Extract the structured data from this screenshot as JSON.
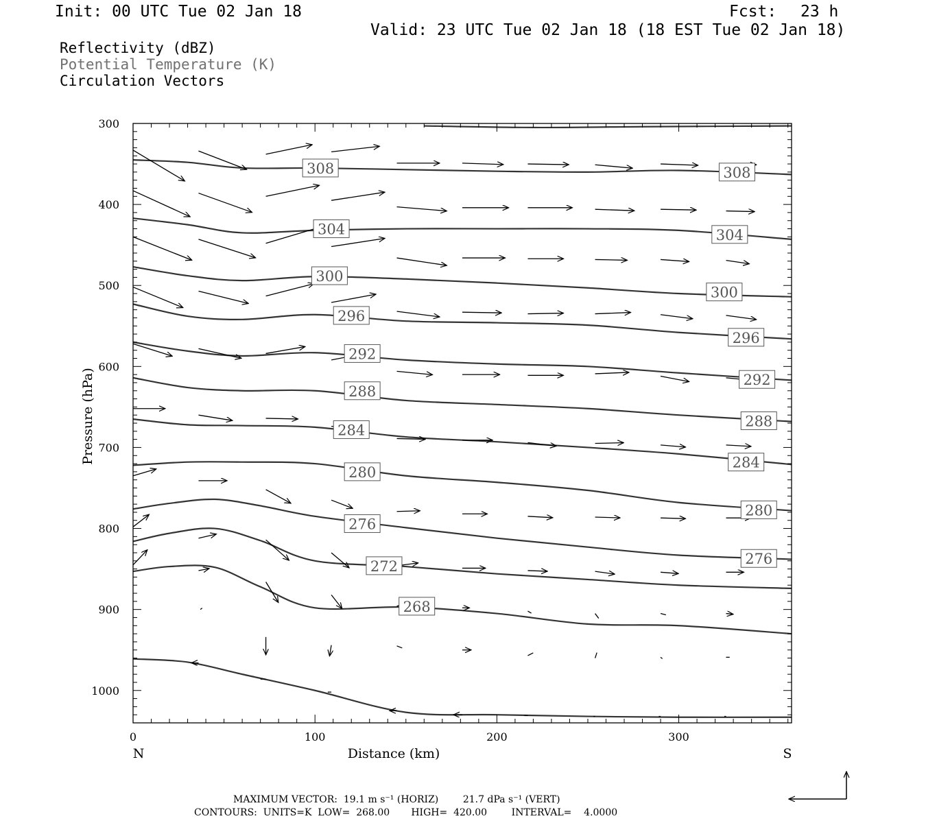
{
  "header": {
    "init": "Init: 00 UTC Tue 02 Jan 18",
    "fcst_label": "Fcst:",
    "fcst_value": "23 h",
    "valid": "Valid: 23 UTC Tue 02 Jan 18 (18 EST Tue 02 Jan 18)"
  },
  "fields": [
    {
      "label": "Reflectivity (dBZ)",
      "color": "#000000"
    },
    {
      "label": "Potential Temperature (K)",
      "color": "#707070"
    },
    {
      "label": "Circulation Vectors",
      "color": "#000000"
    }
  ],
  "footer": {
    "max_vector": "MAXIMUM VECTOR:  19.1 m s⁻¹ (HORIZ)        21.7 dPa s⁻¹ (VERT)",
    "contours": "CONTOURS:  UNITS=K  LOW=  268.00       HIGH=  420.00        INTERVAL=    4.0000"
  },
  "chart_data": {
    "type": "line",
    "title": "",
    "xlabel": "Distance (km)",
    "ylabel": "Pressure (hPa)",
    "xlim": [
      0,
      362
    ],
    "ylim": [
      300,
      1040
    ],
    "y_inverted": true,
    "x_ticks": [
      0,
      100,
      200,
      300
    ],
    "y_ticks": [
      300,
      400,
      500,
      600,
      700,
      800,
      900,
      1000
    ],
    "x_end_labels": {
      "left": "N",
      "right": "S"
    },
    "contour_color": "#333333",
    "series": [
      {
        "name": "308",
        "label_positions": [
          [
            103,
            355
          ],
          [
            332,
            360
          ]
        ],
        "x": [
          0,
          30,
          60,
          100,
          150,
          200,
          250,
          300,
          362
        ],
        "p": [
          345,
          348,
          355,
          355,
          357,
          359,
          360,
          358,
          363
        ]
      },
      {
        "name": "304",
        "label_positions": [
          [
            109,
            430
          ],
          [
            328,
            437
          ]
        ],
        "x": [
          0,
          30,
          60,
          100,
          150,
          200,
          250,
          300,
          362
        ],
        "p": [
          417,
          425,
          435,
          432,
          430,
          430,
          430,
          432,
          443
        ]
      },
      {
        "name": "300",
        "label_positions": [
          [
            108,
            488
          ],
          [
            325,
            508
          ]
        ],
        "x": [
          0,
          30,
          60,
          100,
          150,
          200,
          250,
          300,
          362
        ],
        "p": [
          477,
          488,
          494,
          489,
          492,
          497,
          503,
          510,
          514
        ]
      },
      {
        "name": "296",
        "label_positions": [
          [
            120,
            537
          ],
          [
            337,
            564
          ]
        ],
        "x": [
          0,
          30,
          60,
          100,
          150,
          200,
          250,
          300,
          362
        ],
        "p": [
          523,
          538,
          542,
          536,
          544,
          546,
          549,
          558,
          566
        ]
      },
      {
        "name": "292",
        "label_positions": [
          [
            126,
            584
          ],
          [
            343,
            616
          ]
        ],
        "x": [
          0,
          30,
          60,
          100,
          150,
          200,
          250,
          300,
          362
        ],
        "p": [
          570,
          581,
          587,
          583,
          592,
          597,
          600,
          608,
          617
        ]
      },
      {
        "name": "288",
        "label_positions": [
          [
            126,
            630
          ],
          [
            344,
            667
          ]
        ],
        "x": [
          0,
          30,
          60,
          100,
          150,
          200,
          250,
          300,
          362
        ],
        "p": [
          614,
          626,
          630,
          630,
          642,
          647,
          652,
          660,
          668
        ]
      },
      {
        "name": "284",
        "label_positions": [
          [
            120,
            678
          ],
          [
            337,
            718
          ]
        ],
        "x": [
          0,
          30,
          60,
          100,
          150,
          200,
          250,
          300,
          362
        ],
        "p": [
          665,
          672,
          673,
          675,
          687,
          693,
          700,
          708,
          721
        ]
      },
      {
        "name": "280",
        "label_positions": [
          [
            126,
            730
          ],
          [
            344,
            777
          ]
        ],
        "x": [
          0,
          30,
          60,
          100,
          150,
          200,
          250,
          300,
          362
        ],
        "p": [
          722,
          718,
          718,
          720,
          735,
          743,
          753,
          768,
          778
        ]
      },
      {
        "name": "276",
        "label_positions": [
          [
            126,
            794
          ],
          [
            344,
            837
          ]
        ],
        "x": [
          0,
          20,
          45,
          70,
          100,
          150,
          200,
          250,
          300,
          362
        ],
        "p": [
          776,
          769,
          764,
          772,
          785,
          799,
          812,
          823,
          833,
          838
        ]
      },
      {
        "name": "272",
        "label_positions": [
          [
            138,
            846
          ]
        ],
        "x": [
          0,
          20,
          45,
          70,
          100,
          150,
          200,
          250,
          300,
          362
        ],
        "p": [
          816,
          806,
          800,
          815,
          840,
          847,
          856,
          863,
          870,
          874
        ]
      },
      {
        "name": "268",
        "label_positions": [
          [
            156,
            896
          ]
        ],
        "x": [
          0,
          20,
          45,
          70,
          100,
          150,
          200,
          250,
          300,
          362
        ],
        "p": [
          853,
          847,
          848,
          872,
          898,
          897,
          905,
          918,
          920,
          930
        ]
      },
      {
        "name": "",
        "x": [
          0,
          30,
          60,
          100,
          150,
          200,
          250,
          300,
          362
        ],
        "p": [
          961,
          965,
          980,
          1000,
          1027,
          1030,
          1032,
          1033,
          1033
        ]
      },
      {
        "name": "",
        "x": [
          160,
          220,
          280,
          362
        ],
        "p": [
          303,
          305,
          304,
          303
        ]
      }
    ],
    "vectors": [
      {
        "x": 0,
        "p": 333,
        "u": 29,
        "w": 45
      },
      {
        "x": 36,
        "p": 334,
        "u": 27,
        "w": 27
      },
      {
        "x": 73,
        "p": 338,
        "u": 26,
        "w": -14
      },
      {
        "x": 109,
        "p": 335,
        "u": 27,
        "w": -8
      },
      {
        "x": 145,
        "p": 349,
        "u": 24,
        "w": 0
      },
      {
        "x": 181,
        "p": 349,
        "u": 23,
        "w": 2
      },
      {
        "x": 217,
        "p": 350,
        "u": 23,
        "w": 1
      },
      {
        "x": 254,
        "p": 351,
        "u": 21,
        "w": 5
      },
      {
        "x": 290,
        "p": 350,
        "u": 21,
        "w": 2
      },
      {
        "x": 326,
        "p": 351,
        "u": 17,
        "w": 0
      },
      {
        "x": 0,
        "p": 383,
        "u": 32,
        "w": 38
      },
      {
        "x": 36,
        "p": 386,
        "u": 30,
        "w": 28
      },
      {
        "x": 73,
        "p": 390,
        "u": 30,
        "w": -16
      },
      {
        "x": 109,
        "p": 395,
        "u": 30,
        "w": -12
      },
      {
        "x": 145,
        "p": 403,
        "u": 28,
        "w": 6
      },
      {
        "x": 181,
        "p": 404,
        "u": 26,
        "w": 0
      },
      {
        "x": 217,
        "p": 404,
        "u": 25,
        "w": 0
      },
      {
        "x": 254,
        "p": 406,
        "u": 22,
        "w": 2
      },
      {
        "x": 290,
        "p": 406,
        "u": 20,
        "w": 1
      },
      {
        "x": 326,
        "p": 408,
        "u": 16,
        "w": 1
      },
      {
        "x": 0,
        "p": 440,
        "u": 33,
        "w": 34
      },
      {
        "x": 36,
        "p": 443,
        "u": 32,
        "w": 27
      },
      {
        "x": 73,
        "p": 448,
        "u": 31,
        "w": -24
      },
      {
        "x": 109,
        "p": 452,
        "u": 30,
        "w": -12
      },
      {
        "x": 145,
        "p": 466,
        "u": 28,
        "w": 11
      },
      {
        "x": 181,
        "p": 466,
        "u": 24,
        "w": 0
      },
      {
        "x": 217,
        "p": 467,
        "u": 20,
        "w": 0
      },
      {
        "x": 254,
        "p": 468,
        "u": 18,
        "w": 1
      },
      {
        "x": 290,
        "p": 468,
        "u": 16,
        "w": 3
      },
      {
        "x": 326,
        "p": 469,
        "u": 13,
        "w": 5
      },
      {
        "x": 0,
        "p": 502,
        "u": 28,
        "w": 30
      },
      {
        "x": 36,
        "p": 507,
        "u": 28,
        "w": 18
      },
      {
        "x": 73,
        "p": 513,
        "u": 27,
        "w": -18
      },
      {
        "x": 109,
        "p": 521,
        "u": 25,
        "w": -12
      },
      {
        "x": 145,
        "p": 532,
        "u": 24,
        "w": 8
      },
      {
        "x": 181,
        "p": 533,
        "u": 22,
        "w": 1
      },
      {
        "x": 217,
        "p": 535,
        "u": 20,
        "w": -1
      },
      {
        "x": 254,
        "p": 535,
        "u": 20,
        "w": -2
      },
      {
        "x": 290,
        "p": 536,
        "u": 18,
        "w": 6
      },
      {
        "x": 326,
        "p": 537,
        "u": 17,
        "w": 6
      },
      {
        "x": 0,
        "p": 572,
        "u": 22,
        "w": 18
      },
      {
        "x": 36,
        "p": 578,
        "u": 24,
        "w": 14
      },
      {
        "x": 73,
        "p": 584,
        "u": 22,
        "w": -10
      },
      {
        "x": 109,
        "p": 592,
        "u": 20,
        "w": -10
      },
      {
        "x": 145,
        "p": 606,
        "u": 20,
        "w": 5
      },
      {
        "x": 181,
        "p": 610,
        "u": 21,
        "w": 0
      },
      {
        "x": 217,
        "p": 611,
        "u": 20,
        "w": 0
      },
      {
        "x": 254,
        "p": 609,
        "u": 19,
        "w": -2
      },
      {
        "x": 290,
        "p": 612,
        "u": 16,
        "w": 8
      },
      {
        "x": 326,
        "p": 614,
        "u": 16,
        "w": 4
      },
      {
        "x": 0,
        "p": 652,
        "u": 18,
        "w": 0
      },
      {
        "x": 36,
        "p": 660,
        "u": 19,
        "w": 8
      },
      {
        "x": 73,
        "p": 664,
        "u": 18,
        "w": 1
      },
      {
        "x": 109,
        "p": 674,
        "u": 16,
        "w": -2
      },
      {
        "x": 145,
        "p": 689,
        "u": 16,
        "w": 1
      },
      {
        "x": 181,
        "p": 691,
        "u": 17,
        "w": 0
      },
      {
        "x": 217,
        "p": 694,
        "u": 16,
        "w": 5
      },
      {
        "x": 254,
        "p": 695,
        "u": 16,
        "w": -1
      },
      {
        "x": 290,
        "p": 697,
        "u": 14,
        "w": 3
      },
      {
        "x": 326,
        "p": 697,
        "u": 14,
        "w": 2
      },
      {
        "x": 0,
        "p": 735,
        "u": 13,
        "w": -10
      },
      {
        "x": 36,
        "p": 741,
        "u": 16,
        "w": 0
      },
      {
        "x": 73,
        "p": 752,
        "u": 14,
        "w": 20
      },
      {
        "x": 109,
        "p": 765,
        "u": 12,
        "w": 12
      },
      {
        "x": 145,
        "p": 779,
        "u": 13,
        "w": -1
      },
      {
        "x": 181,
        "p": 782,
        "u": 14,
        "w": 0
      },
      {
        "x": 217,
        "p": 785,
        "u": 14,
        "w": 2
      },
      {
        "x": 254,
        "p": 786,
        "u": 14,
        "w": 1
      },
      {
        "x": 290,
        "p": 787,
        "u": 14,
        "w": 1
      },
      {
        "x": 326,
        "p": 787,
        "u": 14,
        "w": 0
      },
      {
        "x": 0,
        "p": 798,
        "u": 9,
        "w": -18
      },
      {
        "x": 36,
        "p": 812,
        "u": 10,
        "w": -6
      },
      {
        "x": 73,
        "p": 814,
        "u": 13,
        "w": 30
      },
      {
        "x": 109,
        "p": 830,
        "u": 10,
        "w": 22
      },
      {
        "x": 145,
        "p": 846,
        "u": 12,
        "w": -4
      },
      {
        "x": 181,
        "p": 849,
        "u": 13,
        "w": 0
      },
      {
        "x": 217,
        "p": 852,
        "u": 11,
        "w": 1
      },
      {
        "x": 254,
        "p": 853,
        "u": 11,
        "w": 4
      },
      {
        "x": 290,
        "p": 854,
        "u": 10,
        "w": 2
      },
      {
        "x": 326,
        "p": 854,
        "u": 10,
        "w": 0
      },
      {
        "x": 0,
        "p": 845,
        "u": 8,
        "w": -22
      },
      {
        "x": 36,
        "p": 852,
        "u": 6,
        "w": -3
      },
      {
        "x": 73,
        "p": 866,
        "u": 7,
        "w": 30
      },
      {
        "x": 109,
        "p": 882,
        "u": 6,
        "w": 20
      },
      {
        "x": 145,
        "p": 896,
        "u": 6,
        "w": -5
      },
      {
        "x": 181,
        "p": 898,
        "u": 4,
        "w": 0
      },
      {
        "x": 217,
        "p": 902,
        "u": 2,
        "w": 3
      },
      {
        "x": 254,
        "p": 905,
        "u": 2,
        "w": 7
      },
      {
        "x": 290,
        "p": 905,
        "u": 3,
        "w": 2
      },
      {
        "x": 326,
        "p": 905,
        "u": 4,
        "w": 1
      },
      {
        "x": 37,
        "p": 900,
        "u": 1,
        "w": -2
      },
      {
        "x": 73,
        "p": 934,
        "u": 0,
        "w": 26
      },
      {
        "x": 109,
        "p": 944,
        "u": -1,
        "w": 16
      },
      {
        "x": 145,
        "p": 945,
        "u": 3,
        "w": 3
      },
      {
        "x": 181,
        "p": 950,
        "u": 5,
        "w": 0
      },
      {
        "x": 217,
        "p": 957,
        "u": 3,
        "w": -4
      },
      {
        "x": 254,
        "p": 960,
        "u": 1,
        "w": -8
      },
      {
        "x": 290,
        "p": 959,
        "u": 1,
        "w": 2
      },
      {
        "x": 326,
        "p": 959,
        "u": 2,
        "w": 0
      },
      {
        "x": 36,
        "p": 966,
        "u": -4,
        "w": 0
      },
      {
        "x": 73,
        "p": 986,
        "u": -3,
        "w": 0
      },
      {
        "x": 109,
        "p": 1002,
        "u": -2,
        "w": 0
      },
      {
        "x": 145,
        "p": 1025,
        "u": -4,
        "w": 0
      },
      {
        "x": 181,
        "p": 1030,
        "u": -5,
        "w": 0
      },
      {
        "x": 217,
        "p": 1031,
        "u": -2,
        "w": 0
      },
      {
        "x": 254,
        "p": 1032,
        "u": -1,
        "w": 0
      },
      {
        "x": 290,
        "p": 1032,
        "u": -1,
        "w": 0
      },
      {
        "x": 326,
        "p": 1032,
        "u": -1,
        "w": 0
      }
    ],
    "reference_vector": {
      "u": 19.1,
      "w": 21.7
    }
  }
}
